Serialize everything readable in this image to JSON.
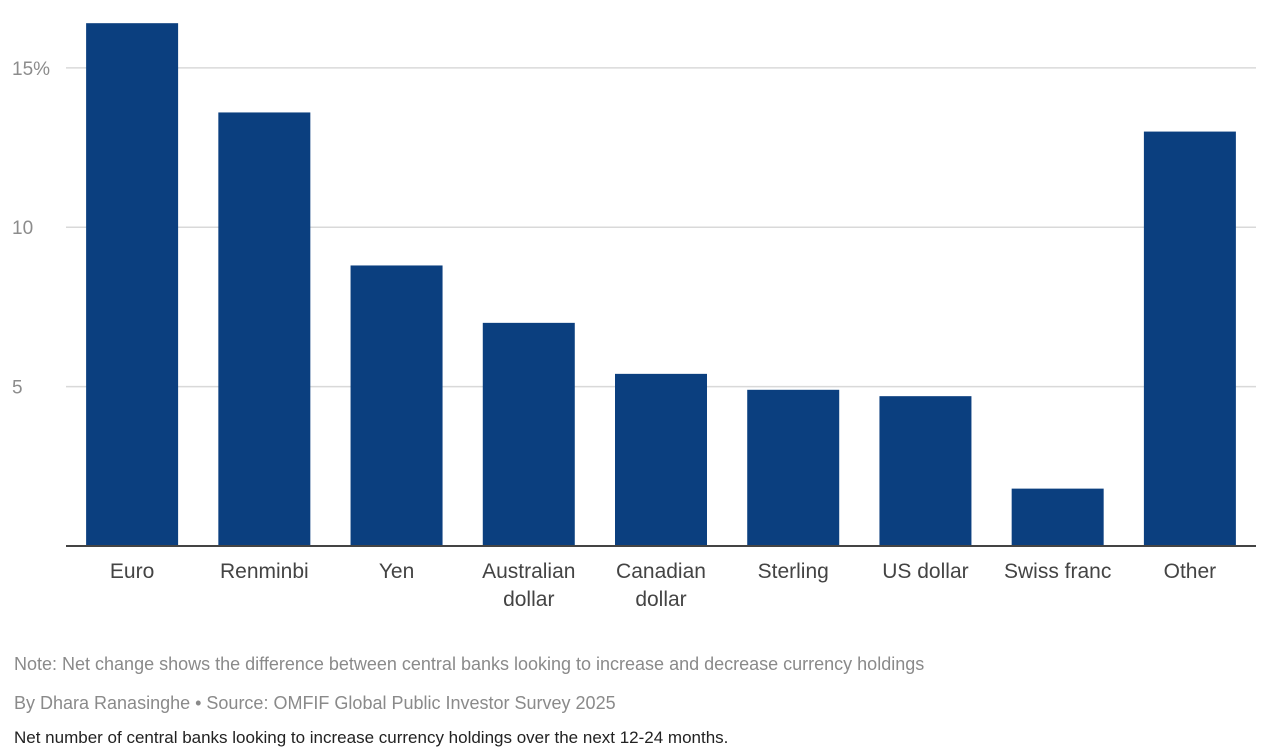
{
  "chart_data": {
    "type": "bar",
    "categories": [
      "Euro",
      "Renminbi",
      "Yen",
      "Australian dollar",
      "Canadian dollar",
      "Sterling",
      "US dollar",
      "Swiss franc",
      "Other"
    ],
    "category_lines": [
      [
        "Euro"
      ],
      [
        "Renminbi"
      ],
      [
        "Yen"
      ],
      [
        "Australian",
        "dollar"
      ],
      [
        "Canadian",
        "dollar"
      ],
      [
        "Sterling"
      ],
      [
        "US dollar"
      ],
      [
        "Swiss franc"
      ],
      [
        "Other"
      ]
    ],
    "values": [
      16.4,
      13.6,
      8.8,
      7.0,
      5.4,
      4.9,
      4.7,
      1.8,
      13.0
    ],
    "ylim": [
      0,
      16.5
    ],
    "yticks": [
      5,
      10,
      15
    ],
    "ytick_labels": [
      "5",
      "10",
      "15%"
    ],
    "bar_color": "#0b3f7f",
    "grid": true,
    "title": "",
    "xlabel": "",
    "ylabel": ""
  },
  "footer": {
    "note": "Note: Net change shows the difference between central banks looking to increase and decrease currency holdings",
    "byline": "By Dhara Ranasinghe  • Source: OMFIF Global Public Investor Survey 2025",
    "subtitle": "Net number of central banks looking to increase currency holdings over the next 12-24 months."
  }
}
